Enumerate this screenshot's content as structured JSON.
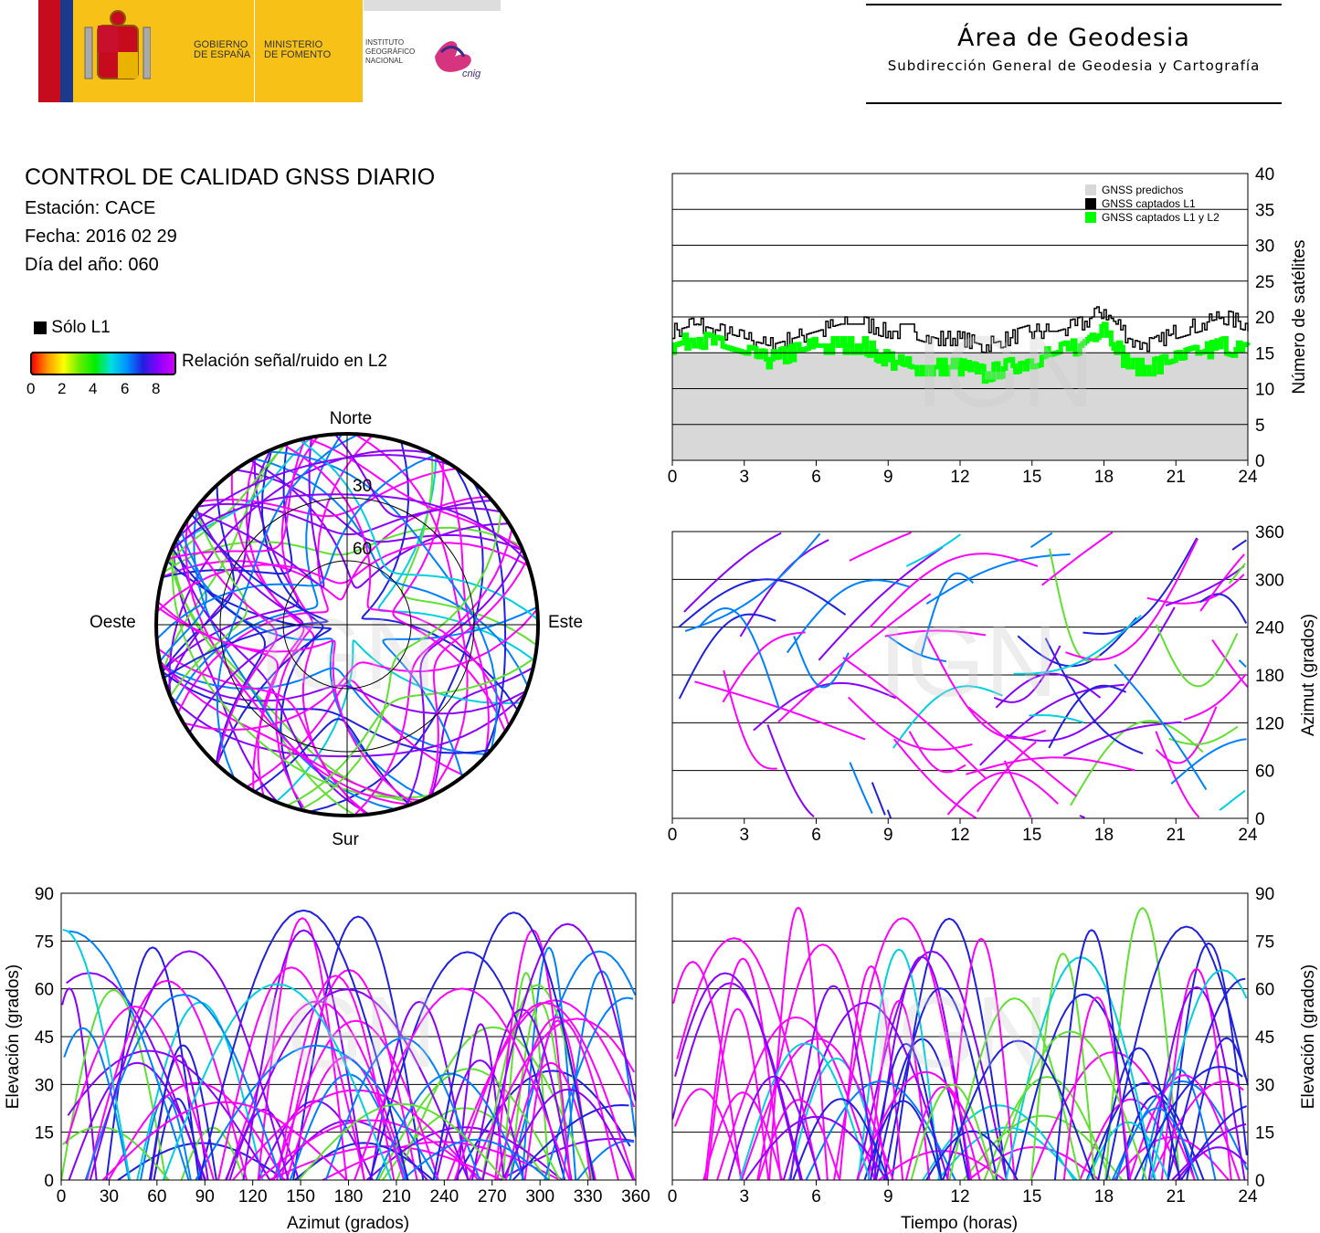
{
  "header": {
    "gov_line1": "GOBIERNO",
    "gov_line2": "DE ESPAÑA",
    "min_line1": "MINISTERIO",
    "min_line2": "DE FOMENTO",
    "ign_line1": "INSTITUTO",
    "ign_line2": "GEOGRÁFICO",
    "ign_line3": "NACIONAL",
    "cnig_logo": "cnig",
    "area_title": "Área de Geodesia",
    "area_subtitle": "Subdirección General de Geodesia y Cartografía"
  },
  "info": {
    "title": "CONTROL DE CALIDAD GNSS DIARIO",
    "station": "Estación: CACE",
    "date": "Fecha: 2016 02 29",
    "doy": "Día del año: 060"
  },
  "legend": {
    "only_l1": "Sólo L1",
    "snr_label": "Relación señal/ruido en L2",
    "scale_ticks": [
      "0",
      "2",
      "4",
      "6",
      "8"
    ]
  },
  "watermark": "IGN",
  "colors": {
    "magenta": "#ff00ff",
    "violet": "#8a00ff",
    "blue": "#2020e0",
    "azure": "#0080ff",
    "cyan": "#00d0e0",
    "green": "#60e030",
    "black": "#000000",
    "predicted_fill": "#d8d8d8",
    "l1l2_green": "#00ff00"
  },
  "chart_data": [
    {
      "type": "polar",
      "id": "skyplot",
      "directions": {
        "north": "Norte",
        "south": "Sur",
        "east": "Este",
        "west": "Oeste"
      },
      "ring_labels": [
        "30",
        "60"
      ],
      "elevation_rings": [
        30,
        60
      ],
      "elevation_mask": 0,
      "note": "satellite tracks, colour = L2 SNR"
    },
    {
      "type": "area",
      "id": "satellite_count",
      "ylabel": "Número de satélites",
      "xlim": [
        0,
        24
      ],
      "ylim": [
        0,
        40
      ],
      "xticks": [
        "0",
        "3",
        "6",
        "9",
        "12",
        "15",
        "18",
        "21",
        "24"
      ],
      "yticks": [
        "0",
        "5",
        "10",
        "15",
        "20",
        "25",
        "30",
        "35",
        "40"
      ],
      "legend": [
        "GNSS predichos",
        "GNSS captados L1",
        "GNSS captados L1 y L2"
      ],
      "x": [
        0,
        1,
        2,
        3,
        4,
        5,
        6,
        7,
        8,
        9,
        10,
        11,
        12,
        13,
        14,
        15,
        16,
        17,
        18,
        19,
        20,
        21,
        22,
        23,
        24
      ],
      "series": [
        {
          "name": "GNSS predichos",
          "values": [
            15,
            15,
            15,
            15,
            15,
            15,
            15,
            15,
            15,
            15,
            15,
            15,
            15,
            15,
            15,
            15,
            15,
            15,
            15,
            15,
            15,
            15,
            15,
            15,
            15
          ]
        },
        {
          "name": "GNSS captados L1",
          "values": [
            18,
            19,
            18,
            17,
            16,
            17,
            18,
            19,
            19,
            18,
            18,
            17,
            17,
            16,
            17,
            18,
            18,
            19,
            21,
            17,
            16,
            18,
            19,
            20,
            19
          ]
        },
        {
          "name": "GNSS captados L1 y L2",
          "values": [
            16,
            17,
            16,
            15,
            14,
            15,
            16,
            16,
            16,
            14,
            13,
            13,
            13,
            12,
            13,
            14,
            15,
            16,
            19,
            13,
            13,
            14,
            15,
            16,
            15
          ]
        }
      ]
    },
    {
      "type": "scatter",
      "id": "azimuth_time",
      "ylabel": "Azimut (grados)",
      "xlim": [
        0,
        24
      ],
      "ylim": [
        0,
        360
      ],
      "xticks": [
        "0",
        "3",
        "6",
        "9",
        "12",
        "15",
        "18",
        "21",
        "24"
      ],
      "yticks": [
        "0",
        "60",
        "120",
        "180",
        "240",
        "300",
        "360"
      ]
    },
    {
      "type": "scatter",
      "id": "elevation_azimuth",
      "xlabel": "Azimut (grados)",
      "ylabel": "Elevación (grados)",
      "xlim": [
        0,
        360
      ],
      "ylim": [
        0,
        90
      ],
      "xticks": [
        "0",
        "30",
        "60",
        "90",
        "120",
        "150",
        "180",
        "210",
        "240",
        "270",
        "300",
        "330",
        "360"
      ],
      "yticks": [
        "0",
        "15",
        "30",
        "45",
        "60",
        "75",
        "90"
      ]
    },
    {
      "type": "scatter",
      "id": "elevation_time",
      "xlabel": "Tiempo (horas)",
      "ylabel": "Elevación (grados)",
      "xlim": [
        0,
        24
      ],
      "ylim": [
        0,
        90
      ],
      "xticks": [
        "0",
        "3",
        "6",
        "9",
        "12",
        "15",
        "18",
        "21",
        "24"
      ],
      "yticks": [
        "0",
        "15",
        "30",
        "45",
        "60",
        "75",
        "90"
      ]
    }
  ]
}
